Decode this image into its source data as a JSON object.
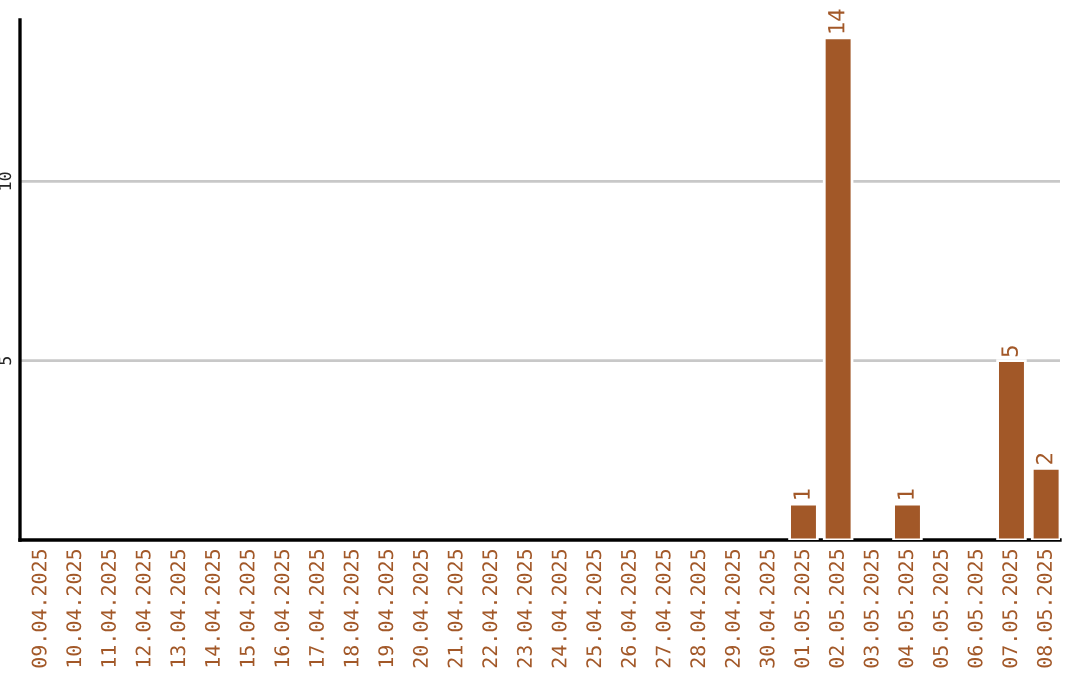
{
  "chart_data": {
    "type": "bar",
    "categories": [
      "09.04.2025",
      "10.04.2025",
      "11.04.2025",
      "12.04.2025",
      "13.04.2025",
      "14.04.2025",
      "15.04.2025",
      "16.04.2025",
      "17.04.2025",
      "18.04.2025",
      "19.04.2025",
      "20.04.2025",
      "21.04.2025",
      "22.04.2025",
      "23.04.2025",
      "24.04.2025",
      "25.04.2025",
      "26.04.2025",
      "27.04.2025",
      "28.04.2025",
      "29.04.2025",
      "30.04.2025",
      "01.05.2025",
      "02.05.2025",
      "03.05.2025",
      "04.05.2025",
      "05.05.2025",
      "06.05.2025",
      "07.05.2025",
      "08.05.2025"
    ],
    "values": [
      null,
      null,
      null,
      null,
      null,
      null,
      null,
      null,
      null,
      null,
      null,
      null,
      null,
      null,
      null,
      null,
      null,
      null,
      null,
      null,
      null,
      null,
      1,
      14,
      null,
      1,
      null,
      null,
      5,
      2
    ],
    "data_labels": true,
    "color": "#a25828",
    "ylim": [
      0,
      14.5
    ],
    "yticks": [
      5,
      10
    ],
    "grid": "y"
  }
}
